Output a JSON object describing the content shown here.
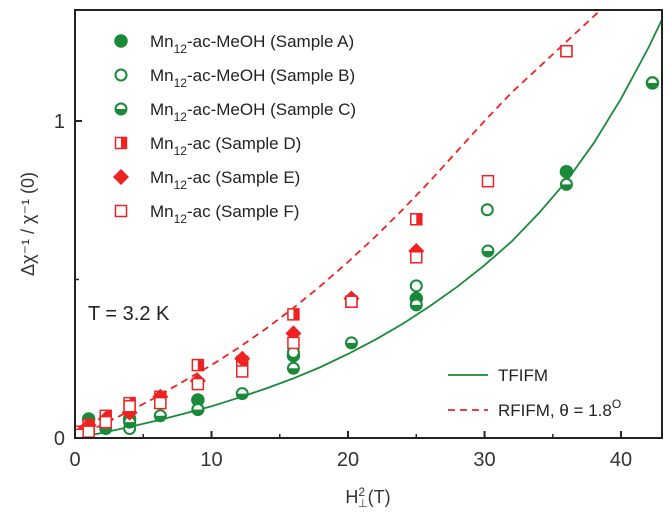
{
  "chart_data": {
    "type": "scatter",
    "xlabel": "H⊥²(T)",
    "ylabel": "Δχ⁻¹ / χ⁻¹ (0)",
    "xlim": [
      0,
      43
    ],
    "ylim": [
      0,
      1.35
    ],
    "x_ticks": [
      0,
      10,
      20,
      30,
      40
    ],
    "y_ticks": [
      0,
      1
    ],
    "y_tick_labels": [
      "0",
      "1"
    ],
    "annotation": "T = 3.2 K",
    "colors": {
      "green": "#1a8a3a",
      "red": "#ee2222",
      "axis": "#222222"
    },
    "series": [
      {
        "name": "Mn12-ac-MeOH (Sample A)",
        "name_main": "Mn",
        "name_sub": "12",
        "name_rest": "-ac-MeOH (Sample A)",
        "color": "#1a8a3a",
        "marker": "circle-filled",
        "x": [
          1.0,
          4.0,
          9.0,
          16.0,
          25.0,
          36.0,
          42.3
        ],
        "y": [
          0.06,
          0.06,
          0.12,
          0.26,
          0.44,
          0.84,
          1.12
        ]
      },
      {
        "name": "Mn12-ac-MeOH (Sample B)",
        "name_main": "Mn",
        "name_sub": "12",
        "name_rest": "-ac-MeOH (Sample B)",
        "color": "#1a8a3a",
        "marker": "circle-open",
        "x": [
          4.0,
          9.0,
          16.0,
          25.0,
          30.2
        ],
        "y": [
          0.03,
          0.09,
          0.27,
          0.48,
          0.72
        ]
      },
      {
        "name": "Mn12-ac-MeOH (Sample C)",
        "name_main": "Mn",
        "name_sub": "12",
        "name_rest": "-ac-MeOH (Sample C)",
        "color": "#1a8a3a",
        "marker": "circle-half",
        "x": [
          0.25,
          1.0,
          2.25,
          4.0,
          6.25,
          9.0,
          12.25,
          16.0,
          20.25,
          25.0,
          30.25,
          36.0,
          42.3
        ],
        "y": [
          0.01,
          0.02,
          0.03,
          0.05,
          0.07,
          0.09,
          0.14,
          0.22,
          0.3,
          0.42,
          0.59,
          0.8,
          1.12
        ]
      },
      {
        "name": "Mn12-ac (Sample D)",
        "name_main": "Mn",
        "name_sub": "12",
        "name_rest": "-ac (Sample D)",
        "color": "#ee2222",
        "marker": "square-half",
        "x": [
          0.25,
          1.0,
          2.25,
          4.0,
          6.25,
          9.0,
          12.25,
          16.0,
          20.25,
          25.0,
          36.0
        ],
        "y": [
          0.02,
          0.04,
          0.07,
          0.11,
          0.13,
          0.23,
          0.24,
          0.39,
          0.43,
          0.69,
          1.22
        ]
      },
      {
        "name": "Mn12-ac (Sample E)",
        "name_main": "Mn",
        "name_sub": "12",
        "name_rest": "-ac (Sample E)",
        "color": "#ee2222",
        "marker": "diamond-filled",
        "x": [
          1.0,
          2.25,
          4.0,
          6.25,
          9.0,
          12.25,
          16.0,
          20.25,
          25.0
        ],
        "y": [
          0.04,
          0.06,
          0.08,
          0.13,
          0.18,
          0.25,
          0.33,
          0.44,
          0.59
        ]
      },
      {
        "name": "Mn12-ac (Sample F)",
        "name_main": "Mn",
        "name_sub": "12",
        "name_rest": "-ac (Sample F)",
        "color": "#ee2222",
        "marker": "square-open",
        "x": [
          0.25,
          1.0,
          2.25,
          4.0,
          6.25,
          9.0,
          12.25,
          16.0,
          20.25,
          25.0,
          30.25,
          36.0
        ],
        "y": [
          0.01,
          0.02,
          0.05,
          0.1,
          0.11,
          0.17,
          0.21,
          0.3,
          0.43,
          0.57,
          0.81,
          1.22
        ]
      }
    ],
    "fits": [
      {
        "name": "TFIFM",
        "color": "#1a8a3a",
        "dash": false,
        "x": [
          0,
          2,
          4,
          6,
          8,
          10,
          12,
          14,
          16,
          18,
          20,
          22,
          24,
          26,
          28,
          30,
          32,
          34,
          36,
          38,
          40,
          42,
          43
        ],
        "y": [
          0.0,
          0.016,
          0.035,
          0.055,
          0.077,
          0.1,
          0.127,
          0.156,
          0.188,
          0.224,
          0.265,
          0.31,
          0.36,
          0.416,
          0.477,
          0.545,
          0.62,
          0.71,
          0.81,
          0.93,
          1.07,
          1.23,
          1.32
        ]
      },
      {
        "name": "RFIFM, θ = 1.8°",
        "name_main": "RFIFM, θ = 1.8",
        "name_sup": "O",
        "color": "#ee2222",
        "dash": true,
        "x": [
          0,
          2,
          4,
          6,
          8,
          10,
          12,
          14,
          16,
          18,
          20,
          22,
          24,
          26,
          28,
          30,
          32,
          34,
          36,
          38,
          38.5
        ],
        "y": [
          0.0,
          0.042,
          0.085,
          0.13,
          0.18,
          0.23,
          0.285,
          0.345,
          0.41,
          0.48,
          0.555,
          0.635,
          0.72,
          0.81,
          0.905,
          1.0,
          1.09,
          1.17,
          1.25,
          1.33,
          1.35
        ]
      }
    ]
  }
}
